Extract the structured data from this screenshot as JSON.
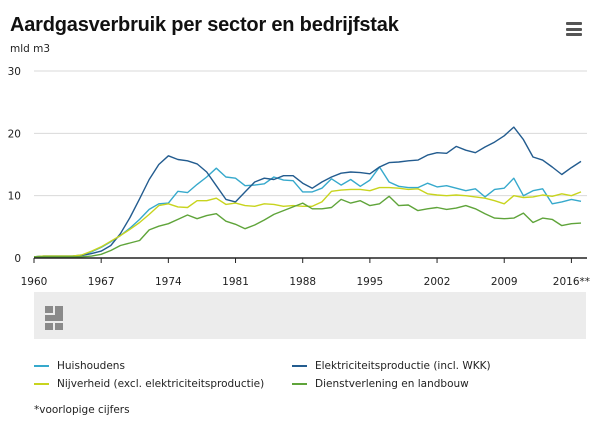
{
  "header": {
    "title": "Aardgasverbruik per sector en bedrijfstak",
    "unit": "mld m3",
    "menu_icon": "hamburger-menu-icon"
  },
  "footnote": "*voorlopige cijfers",
  "chart_data": {
    "type": "line",
    "title": "Aardgasverbruik per sector en bedrijfstak",
    "ylabel": "mld m3",
    "xlabel": "",
    "xlim": [
      1960,
      2017
    ],
    "ylim": [
      0,
      30
    ],
    "y_ticks": [
      0,
      10,
      20,
      30
    ],
    "x_ticks": [
      1960,
      1967,
      1974,
      1981,
      1988,
      1995,
      2002,
      2009
    ],
    "x_tick_labels": [
      "1960",
      "1967",
      "1974",
      "1981",
      "1988",
      "1995",
      "2002",
      "2009"
    ],
    "last_x_tick_label": "2016**",
    "last_x_tick_value": 2016,
    "grid": "horizontal",
    "legend_position": "bottom",
    "years": [
      1960,
      1961,
      1962,
      1963,
      1964,
      1965,
      1966,
      1967,
      1968,
      1969,
      1970,
      1971,
      1972,
      1973,
      1974,
      1975,
      1976,
      1977,
      1978,
      1979,
      1980,
      1981,
      1982,
      1983,
      1984,
      1985,
      1986,
      1987,
      1988,
      1989,
      1990,
      1991,
      1992,
      1993,
      1994,
      1995,
      1996,
      1997,
      1998,
      1999,
      2000,
      2001,
      2002,
      2003,
      2004,
      2005,
      2006,
      2007,
      2008,
      2009,
      2010,
      2011,
      2012,
      2013,
      2014,
      2015,
      2016,
      2017
    ],
    "series": [
      {
        "name": "Huishoudens",
        "color": "#36a9cc",
        "values": [
          0.2,
          0.3,
          0.3,
          0.3,
          0.3,
          0.5,
          1.0,
          1.7,
          2.6,
          3.6,
          4.8,
          6.2,
          7.8,
          8.7,
          8.8,
          10.7,
          10.5,
          11.8,
          13.0,
          14.4,
          13.0,
          12.8,
          11.6,
          11.7,
          11.9,
          13.0,
          12.5,
          12.4,
          10.6,
          10.6,
          11.2,
          12.7,
          11.7,
          12.6,
          11.5,
          12.5,
          14.6,
          12.2,
          11.5,
          11.3,
          11.3,
          12.0,
          11.4,
          11.6,
          11.2,
          10.8,
          11.1,
          9.8,
          11.0,
          11.2,
          12.8,
          10.0,
          10.8,
          11.1,
          8.7,
          9.0,
          9.4,
          9.1
        ]
      },
      {
        "name": "Elektriciteitsproductie (incl. WKK)",
        "color": "#235c8f",
        "values": [
          0.2,
          0.3,
          0.3,
          0.3,
          0.3,
          0.4,
          0.7,
          1.1,
          2.0,
          3.9,
          6.5,
          9.5,
          12.6,
          15.0,
          16.4,
          15.8,
          15.6,
          15.1,
          13.8,
          11.6,
          9.4,
          9.0,
          10.6,
          12.2,
          12.8,
          12.6,
          13.2,
          13.2,
          12.0,
          11.2,
          12.2,
          13.0,
          13.6,
          13.8,
          13.7,
          13.5,
          14.6,
          15.3,
          15.4,
          15.6,
          15.7,
          16.5,
          16.9,
          16.8,
          17.9,
          17.3,
          16.9,
          17.8,
          18.6,
          19.6,
          21.0,
          19.0,
          16.2,
          15.7,
          14.6,
          13.4,
          14.5,
          15.5
        ]
      },
      {
        "name": "Nijverheid (excl. elektriciteitsproductie)",
        "color": "#c8d41e",
        "values": [
          0.2,
          0.3,
          0.3,
          0.3,
          0.3,
          0.5,
          1.1,
          1.8,
          2.7,
          3.6,
          4.6,
          5.7,
          7.0,
          8.4,
          8.7,
          8.2,
          8.1,
          9.2,
          9.2,
          9.6,
          8.6,
          8.8,
          8.4,
          8.3,
          8.7,
          8.6,
          8.3,
          8.4,
          8.3,
          8.3,
          9.0,
          10.7,
          10.9,
          11.0,
          11.0,
          10.8,
          11.3,
          11.3,
          11.2,
          11.0,
          11.1,
          10.3,
          10.1,
          10.0,
          10.1,
          10.0,
          9.8,
          9.6,
          9.2,
          8.7,
          10.0,
          9.7,
          9.8,
          10.1,
          9.9,
          10.3,
          10.0,
          10.6
        ]
      },
      {
        "name": "Dienstverlening en landbouw",
        "color": "#5fa43a",
        "values": [
          0.2,
          0.2,
          0.2,
          0.2,
          0.2,
          0.2,
          0.3,
          0.6,
          1.2,
          2.0,
          2.4,
          2.8,
          4.5,
          5.1,
          5.5,
          6.2,
          6.9,
          6.3,
          6.8,
          7.1,
          5.9,
          5.4,
          4.7,
          5.3,
          6.1,
          7.0,
          7.6,
          8.2,
          8.8,
          7.9,
          7.9,
          8.1,
          9.4,
          8.8,
          9.2,
          8.4,
          8.7,
          9.9,
          8.4,
          8.5,
          7.6,
          7.9,
          8.1,
          7.8,
          8.0,
          8.4,
          7.9,
          7.1,
          6.4,
          6.3,
          6.4,
          7.2,
          5.7,
          6.4,
          6.2,
          5.2,
          5.5,
          5.6
        ]
      }
    ]
  }
}
